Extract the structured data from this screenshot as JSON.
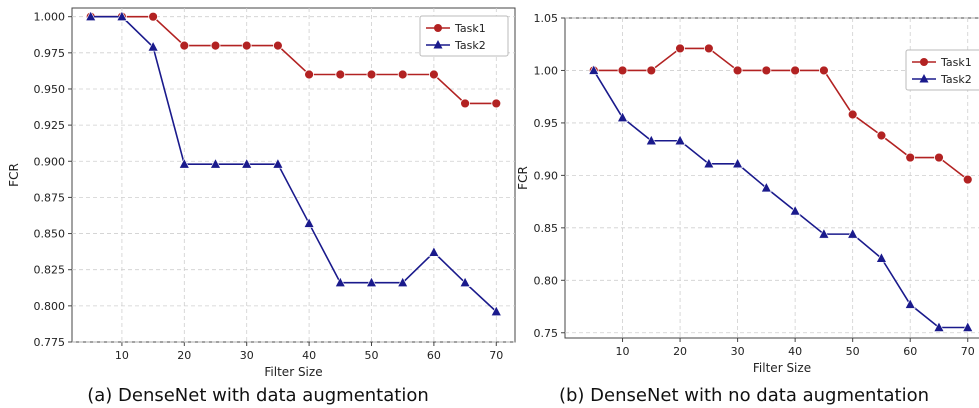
{
  "colors": {
    "task1": "#b22222",
    "task2": "#1a1a8c",
    "grid": "#cfcfcf"
  },
  "chart_data": [
    {
      "type": "line",
      "caption": "(a) DenseNet with data augmentation",
      "xlabel": "Filter Size",
      "ylabel": "FCR",
      "xlim": [
        2,
        73
      ],
      "ylim": [
        0.775,
        1.006
      ],
      "xticks": [
        "10",
        "20",
        "30",
        "40",
        "50",
        "60",
        "70"
      ],
      "yticks": [
        "0.775",
        "0.800",
        "0.825",
        "0.850",
        "0.875",
        "0.900",
        "0.925",
        "0.950",
        "0.975",
        "1.000"
      ],
      "grid": true,
      "legend": "top-right",
      "x": [
        5,
        10,
        15,
        20,
        25,
        30,
        35,
        40,
        45,
        50,
        55,
        60,
        65,
        70
      ],
      "series": [
        {
          "name": "Task1",
          "marker": "circle",
          "values": [
            1.0,
            1.0,
            1.0,
            0.98,
            0.98,
            0.98,
            0.98,
            0.96,
            0.96,
            0.96,
            0.96,
            0.96,
            0.94,
            0.94
          ]
        },
        {
          "name": "Task2",
          "marker": "triangle",
          "values": [
            1.0,
            1.0,
            0.979,
            0.898,
            0.898,
            0.898,
            0.898,
            0.857,
            0.816,
            0.816,
            0.816,
            0.837,
            0.816,
            0.796
          ]
        }
      ]
    },
    {
      "type": "line",
      "caption": "(b) DenseNet with no data augmentation",
      "xlabel": "Filter Size",
      "ylabel": "FCR",
      "xlim": [
        0,
        73
      ],
      "ylim": [
        0.745,
        1.05
      ],
      "xticks": [
        "10",
        "20",
        "30",
        "40",
        "50",
        "60",
        "70"
      ],
      "yticks": [
        "0.75",
        "0.80",
        "0.85",
        "0.90",
        "0.95",
        "1.00",
        "1.05"
      ],
      "grid": true,
      "legend": "top-right",
      "x": [
        5,
        10,
        15,
        20,
        25,
        30,
        35,
        40,
        45,
        50,
        55,
        60,
        65,
        70
      ],
      "series": [
        {
          "name": "Task1",
          "marker": "circle",
          "values": [
            1.0,
            1.0,
            1.0,
            1.021,
            1.021,
            1.0,
            1.0,
            1.0,
            1.0,
            0.958,
            0.938,
            0.917,
            0.917,
            0.896
          ]
        },
        {
          "name": "Task2",
          "marker": "triangle",
          "values": [
            1.0,
            0.955,
            0.933,
            0.933,
            0.911,
            0.911,
            0.888,
            0.866,
            0.844,
            0.844,
            0.821,
            0.777,
            0.755,
            0.755
          ]
        }
      ]
    }
  ]
}
